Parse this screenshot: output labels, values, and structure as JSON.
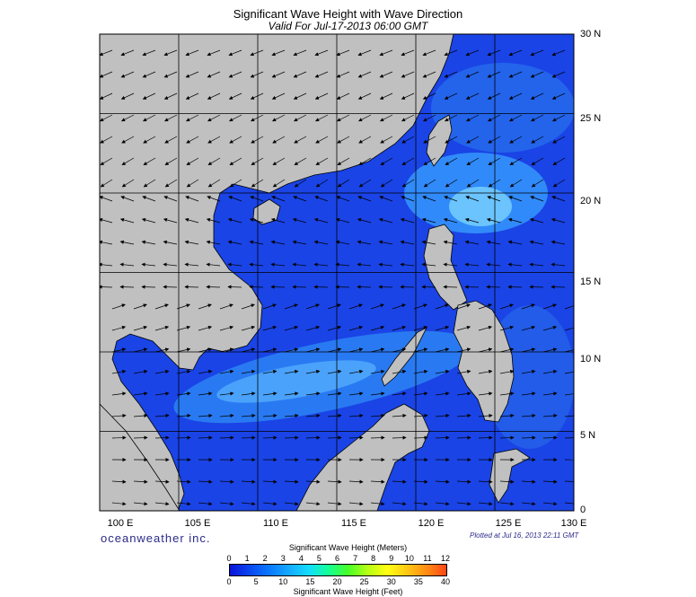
{
  "title": "Significant Wave Height with Wave Direction",
  "subtitle": "Valid For Jul-17-2013 06:00 GMT",
  "brand": "oceanweather inc.",
  "plotted": "Plotted at Jul 16, 2013 22:11 GMT",
  "lat_labels": [
    "30 N",
    "25 N",
    "20 N",
    "15 N",
    "10 N",
    "5 N",
    "0"
  ],
  "lon_labels": [
    "100 E",
    "105 E",
    "110 E",
    "115 E",
    "120 E",
    "125 E",
    "130 E"
  ],
  "colorbar": {
    "title_meters": "Significant Wave Height (Meters)",
    "title_feet": "Significant Wave Height (Feet)",
    "meter_ticks": [
      "0",
      "1",
      "2",
      "3",
      "4",
      "5",
      "6",
      "7",
      "8",
      "9",
      "10",
      "11",
      "12"
    ],
    "feet_ticks": [
      "0",
      "5",
      "10",
      "15",
      "20",
      "25",
      "30",
      "35",
      "40"
    ],
    "colors": [
      "#0a14d8",
      "#0a46f0",
      "#0a78ff",
      "#14aaff",
      "#14dcff",
      "#14ff96",
      "#46ff28",
      "#b4ff14",
      "#ffff14",
      "#ffc814",
      "#ff8c14",
      "#ff4614"
    ]
  },
  "map": {
    "extent": {
      "lon_min": 100,
      "lon_max": 130,
      "lat_min": 0,
      "lat_max": 30
    },
    "land_color": "#c0c0c0",
    "ocean_color": "#1a44e6"
  }
}
